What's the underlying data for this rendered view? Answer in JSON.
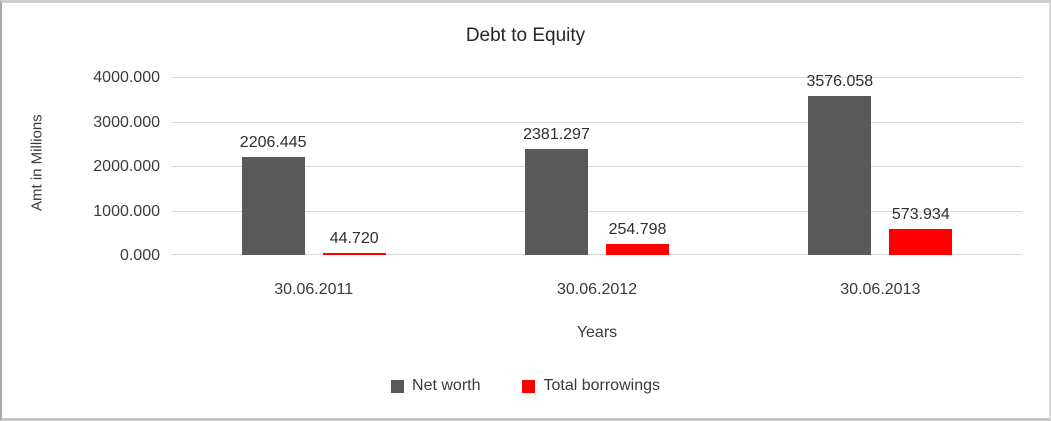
{
  "chart_data": {
    "type": "bar",
    "title": "Debt to Equity",
    "xlabel": "Years",
    "ylabel": "Amt in Millions",
    "categories": [
      "30.06.2011",
      "30.06.2012",
      "30.06.2013"
    ],
    "series": [
      {
        "name": "Net worth",
        "color": "#595959",
        "values": [
          2206.445,
          2381.297,
          3576.058
        ],
        "labels": [
          "2206.445",
          "2381.297",
          "3576.058"
        ]
      },
      {
        "name": "Total borrowings",
        "color": "#ff0000",
        "values": [
          44.72,
          254.798,
          573.934
        ],
        "labels": [
          "44.720",
          "254.798",
          "573.934"
        ]
      }
    ],
    "ylim": [
      0,
      4000
    ],
    "yticks": [
      {
        "value": 0,
        "label": "0.000"
      },
      {
        "value": 1000,
        "label": "1000.000"
      },
      {
        "value": 2000,
        "label": "2000.000"
      },
      {
        "value": 3000,
        "label": "3000.000"
      },
      {
        "value": 4000,
        "label": "4000.000"
      }
    ],
    "grid": true,
    "legend_position": "bottom"
  },
  "colors": {
    "gridline": "#d9d9d9",
    "text": "#3a3a3a",
    "title": "#262626"
  }
}
